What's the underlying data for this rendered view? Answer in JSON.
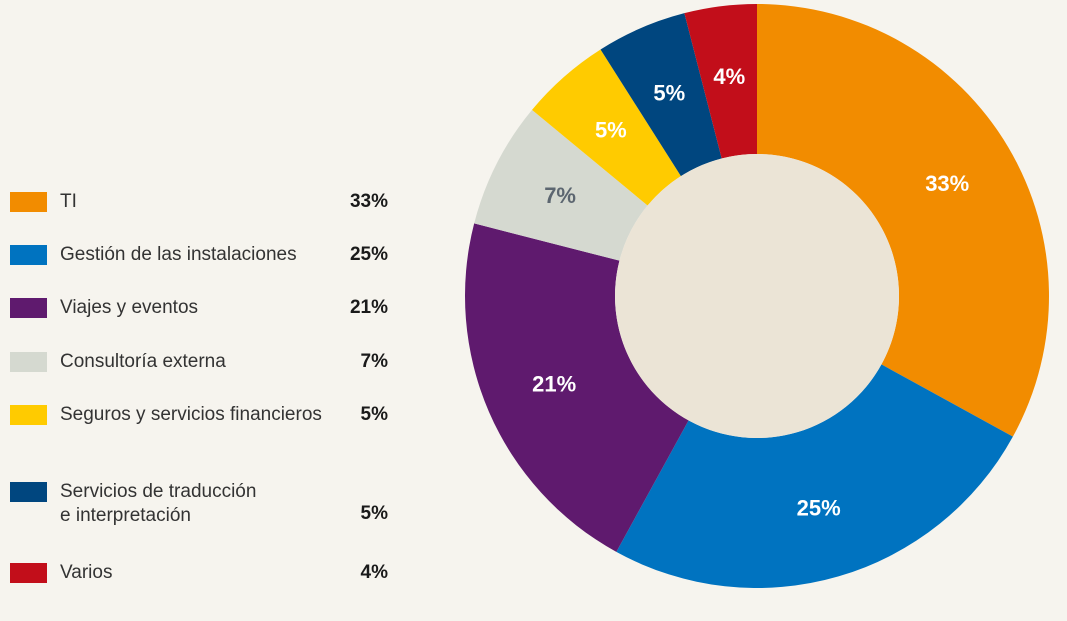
{
  "chart_data": {
    "type": "pie",
    "title": "",
    "donut": true,
    "legend_position": "left",
    "slices": [
      {
        "label": "TI",
        "value": 33,
        "display": "33%",
        "color": "#f28c00",
        "text_color": "#ffffff"
      },
      {
        "label": "Gestión de las instalaciones",
        "value": 25,
        "display": "25%",
        "color": "#0073c0",
        "text_color": "#ffffff"
      },
      {
        "label": "Viajes y eventos",
        "value": 21,
        "display": "21%",
        "color": "#5f1a6e",
        "text_color": "#ffffff"
      },
      {
        "label": "Consultoría externa",
        "value": 7,
        "display": "7%",
        "color": "#d5d9d0",
        "text_color": "#5c6670"
      },
      {
        "label": "Seguros y servicios financieros",
        "value": 5,
        "display": "5%",
        "color": "#ffcb00",
        "text_color": "#ffffff"
      },
      {
        "label": "Servicios de traducción\ne interpretación",
        "value": 5,
        "display": "5%",
        "color": "#00467f",
        "text_color": "#ffffff"
      },
      {
        "label": "Varios",
        "value": 4,
        "display": "4%",
        "color": "#c20e1a",
        "text_color": "#ffffff"
      }
    ],
    "center_color": "#ebe4d6",
    "background": "#f6f4ee"
  }
}
